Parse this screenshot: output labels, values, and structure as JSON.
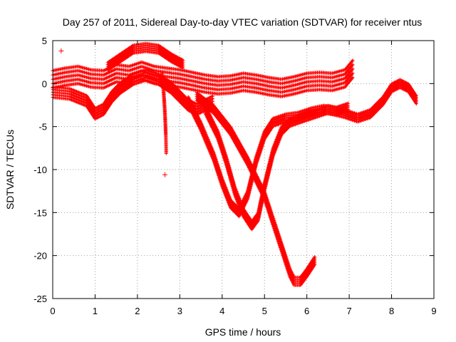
{
  "chart_data": {
    "type": "scatter",
    "title": "Day 257 of 2011, Sidereal Day-to-day VTEC variation (SDTVAR) for receiver ntus",
    "xlabel": "GPS time / hours",
    "ylabel": "SDTVAR / TECUs",
    "xlim": [
      0,
      9
    ],
    "ylim": [
      -25,
      5
    ],
    "xticks": [
      "0",
      "1",
      "2",
      "3",
      "4",
      "5",
      "6",
      "7",
      "8",
      "9"
    ],
    "yticks": [
      "5",
      "0",
      "-5",
      "-10",
      "-15",
      "-20",
      "-25"
    ],
    "grid": true,
    "marker": "+",
    "color": "#ff0000",
    "series": [
      {
        "points": [
          [
            0.0,
            0.5
          ],
          [
            0.3,
            0.8
          ],
          [
            0.6,
            1.0
          ],
          [
            0.9,
            0.6
          ],
          [
            1.2,
            0.5
          ],
          [
            1.5,
            1.2
          ],
          [
            1.8,
            1.0
          ],
          [
            2.1,
            1.5
          ],
          [
            2.4,
            1.0
          ],
          [
            2.7,
            0.8
          ],
          [
            3.0,
            0.6
          ],
          [
            3.3,
            0.3
          ],
          [
            3.6,
            0.0
          ],
          [
            3.9,
            -0.2
          ],
          [
            4.2,
            -0.1
          ],
          [
            4.5,
            0.2
          ],
          [
            4.8,
            0.0
          ],
          [
            5.1,
            -0.3
          ],
          [
            5.4,
            -0.5
          ],
          [
            5.7,
            -0.2
          ],
          [
            6.0,
            0.2
          ],
          [
            6.3,
            0.3
          ],
          [
            6.6,
            0.2
          ],
          [
            6.9,
            0.6
          ],
          [
            7.1,
            1.8
          ]
        ],
        "band": 2.0
      },
      {
        "points": [
          [
            0.0,
            -1.0
          ],
          [
            0.4,
            -1.2
          ],
          [
            0.8,
            -2.0
          ],
          [
            1.0,
            -3.5
          ],
          [
            1.2,
            -3.0
          ],
          [
            1.4,
            -1.5
          ],
          [
            1.6,
            -0.5
          ],
          [
            1.9,
            0.5
          ],
          [
            2.2,
            1.0
          ],
          [
            2.5,
            0.5
          ],
          [
            2.8,
            -0.5
          ],
          [
            3.0,
            -1.5
          ],
          [
            3.2,
            -2.5
          ],
          [
            3.4,
            -3.0
          ],
          [
            3.6,
            -2.5
          ],
          [
            3.8,
            -2.0
          ]
        ],
        "band": 1.2
      },
      {
        "points": [
          [
            1.3,
            2.0
          ],
          [
            1.6,
            3.0
          ],
          [
            1.9,
            4.0
          ],
          [
            2.2,
            4.2
          ],
          [
            2.5,
            4.0
          ],
          [
            2.8,
            3.0
          ],
          [
            3.1,
            2.2
          ]
        ],
        "band": 0.9
      },
      {
        "points": [
          [
            2.58,
            1.0
          ],
          [
            2.62,
            -1.0
          ],
          [
            2.65,
            -3.5
          ],
          [
            2.67,
            -6.0
          ],
          [
            2.68,
            -8.0
          ]
        ],
        "band": 0.5
      },
      {
        "points": [
          [
            3.2,
            -2.0
          ],
          [
            3.5,
            -5.0
          ],
          [
            3.8,
            -8.5
          ],
          [
            4.0,
            -11.5
          ],
          [
            4.2,
            -14.0
          ],
          [
            4.4,
            -15.0
          ],
          [
            4.6,
            -13.0
          ],
          [
            4.8,
            -9.0
          ],
          [
            5.0,
            -6.0
          ],
          [
            5.2,
            -4.5
          ],
          [
            5.5,
            -4.0
          ],
          [
            5.8,
            -3.8
          ],
          [
            6.1,
            -3.3
          ],
          [
            6.4,
            -3.0
          ],
          [
            6.7,
            -3.2
          ],
          [
            7.0,
            -2.7
          ]
        ],
        "band": 0.9
      },
      {
        "points": [
          [
            3.6,
            -3.0
          ],
          [
            3.9,
            -6.0
          ],
          [
            4.1,
            -9.0
          ],
          [
            4.3,
            -12.5
          ],
          [
            4.5,
            -15.0
          ],
          [
            4.7,
            -16.5
          ],
          [
            4.85,
            -15.5
          ],
          [
            5.0,
            -12.0
          ],
          [
            5.2,
            -8.0
          ],
          [
            5.4,
            -5.5
          ],
          [
            5.6,
            -4.5
          ],
          [
            5.9,
            -4.0
          ],
          [
            6.2,
            -3.5
          ],
          [
            6.5,
            -3.0
          ],
          [
            6.9,
            -3.5
          ],
          [
            7.2,
            -4.0
          ],
          [
            7.5,
            -3.5
          ],
          [
            7.8,
            -2.0
          ],
          [
            8.0,
            -0.5
          ],
          [
            8.2,
            0.0
          ],
          [
            8.4,
            -0.5
          ],
          [
            8.6,
            -2.0
          ]
        ],
        "band": 0.9
      },
      {
        "points": [
          [
            3.4,
            -1.5
          ],
          [
            3.8,
            -3.0
          ],
          [
            4.2,
            -5.5
          ],
          [
            4.6,
            -9.0
          ],
          [
            5.0,
            -13.0
          ],
          [
            5.2,
            -16.0
          ],
          [
            5.4,
            -19.0
          ],
          [
            5.6,
            -22.0
          ],
          [
            5.7,
            -23.0
          ],
          [
            5.85,
            -23.0
          ],
          [
            6.0,
            -22.0
          ],
          [
            6.2,
            -20.5
          ]
        ],
        "band": 0.9
      }
    ],
    "outliers": [
      [
        0.2,
        3.8
      ],
      [
        2.65,
        -10.6
      ]
    ]
  }
}
